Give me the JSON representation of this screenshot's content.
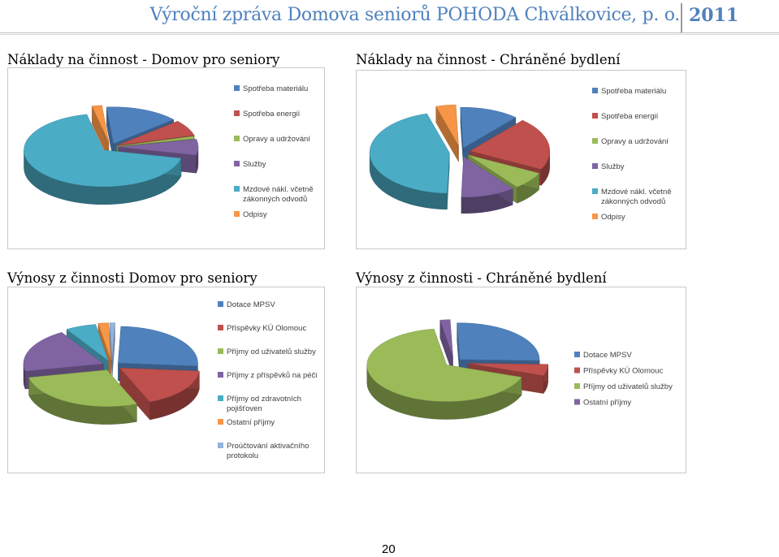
{
  "header": {
    "title": "Výroční zpráva Domova seniorů POHODA Chválkovice, p. o.",
    "year": "2011"
  },
  "page_number": "20",
  "chart_data": [
    {
      "type": "pie",
      "title": "Náklady na činnost - Domov pro seniory",
      "categories": [
        "Spotřeba materiálu",
        "Spotřeba energií",
        "Opravy a udržování",
        "Služby",
        "Mzdové nákl. včetně zákonných odvodů",
        "Odpisy"
      ],
      "legend_lines": [
        [
          "Spotřeba materiálu"
        ],
        [
          "Spotřeba energií"
        ],
        [
          "Opravy a udržování"
        ],
        [
          "Služby"
        ],
        [
          "Mzdové nákl. včetně",
          "zákonných odvodů"
        ],
        [
          "Odpisy"
        ]
      ],
      "values": [
        15,
        7,
        1,
        7,
        68,
        2
      ],
      "colors": [
        "#4f81bd",
        "#c0504d",
        "#9bbb59",
        "#8064a2",
        "#4bacc6",
        "#f79646"
      ],
      "legend_position": "right",
      "style": "3d-exploded"
    },
    {
      "type": "pie",
      "title": "Náklady na činnost - Chráněné bydlení",
      "categories": [
        "Spotřeba materiálu",
        "Spotřeba energií",
        "Opravy a udržování",
        "Služby",
        "Mzdové nákl. včetně zákonných odvodů",
        "Odpisy"
      ],
      "legend_lines": [
        [
          "Spotřeba materiálu"
        ],
        [
          "Spotřeba energií"
        ],
        [
          "Opravy a udržování"
        ],
        [
          "Služby"
        ],
        [
          "Mzdové nákl. včetně",
          "zákonných odvodů"
        ],
        [
          "Odpisy"
        ]
      ],
      "values": [
        12,
        21,
        7,
        11,
        45,
        4
      ],
      "colors": [
        "#4f81bd",
        "#c0504d",
        "#9bbb59",
        "#8064a2",
        "#4bacc6",
        "#f79646"
      ],
      "legend_position": "right",
      "style": "3d-exploded"
    },
    {
      "type": "pie",
      "title": "Výnosy z činnosti Domov pro seniory",
      "categories": [
        "Dotace MPSV",
        "Příspěvky KÚ Olomouc",
        "Příjmy od uživatelů služby",
        "Příjmy z příspěvků na péči",
        "Příjmy od zdravotních pojišťoven",
        "Ostatní příjmy",
        "Proúčtování aktivačního protokolu"
      ],
      "legend_lines": [
        [
          "Dotace MPSV"
        ],
        [
          "Příspěvky  KÚ Olomouc"
        ],
        [
          "Příjmy od uživatelů služby"
        ],
        [
          "Příjmy z příspěvků na péči"
        ],
        [
          "Příjmy od zdravotních",
          "pojišťoven"
        ],
        [
          "Ostatní příjmy"
        ],
        [
          "Proúčtování aktivačního",
          "protokolu"
        ]
      ],
      "values": [
        25,
        17,
        27,
        19,
        6,
        2,
        1
      ],
      "colors": [
        "#4f81bd",
        "#c0504d",
        "#9bbb59",
        "#8064a2",
        "#4bacc6",
        "#f79646",
        "#93b3dc"
      ],
      "legend_position": "top",
      "style": "3d-exploded"
    },
    {
      "type": "pie",
      "title": "Výnosy z činnosti - Chráněné bydlení",
      "categories": [
        "Dotace MPSV",
        "Příspěvky  KÚ Olomouc",
        "Příjmy od uživatelů služby",
        "Ostatní příjmy"
      ],
      "legend_lines": [
        [
          "Dotace MPSV"
        ],
        [
          "Příspěvky  KÚ Olomouc"
        ],
        [
          "Příjmy od uživatelů služby"
        ],
        [
          "Ostatní příjmy"
        ]
      ],
      "values": [
        26,
        5,
        67,
        2
      ],
      "colors": [
        "#4f81bd",
        "#c0504d",
        "#9bbb59",
        "#8064a2"
      ],
      "legend_position": "right",
      "style": "3d-exploded"
    }
  ]
}
